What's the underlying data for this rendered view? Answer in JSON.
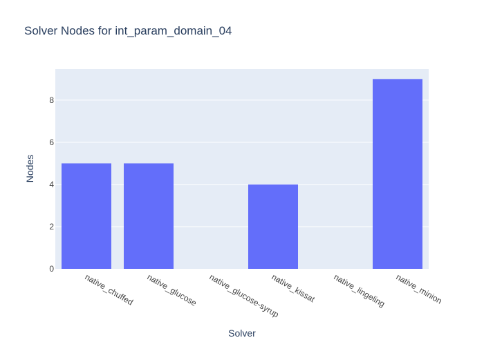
{
  "chart_data": {
    "type": "bar",
    "title": "Solver Nodes for int_param_domain_04",
    "xlabel": "Solver",
    "ylabel": "Nodes",
    "categories": [
      "native_chuffed",
      "native_glucose",
      "native_glucose-syrup",
      "native_kissat",
      "native_lingeling",
      "native_minion"
    ],
    "values": [
      5,
      5,
      0,
      4,
      0,
      9
    ],
    "ylim": [
      0,
      9.47
    ],
    "yticks": [
      0,
      2,
      4,
      6,
      8
    ],
    "grid": true,
    "colors": {
      "bar": "#636efa",
      "plot_bg": "#e5ecf6",
      "grid": "#ffffff",
      "text": "#2a3f5f",
      "tick_text": "#444444"
    }
  }
}
